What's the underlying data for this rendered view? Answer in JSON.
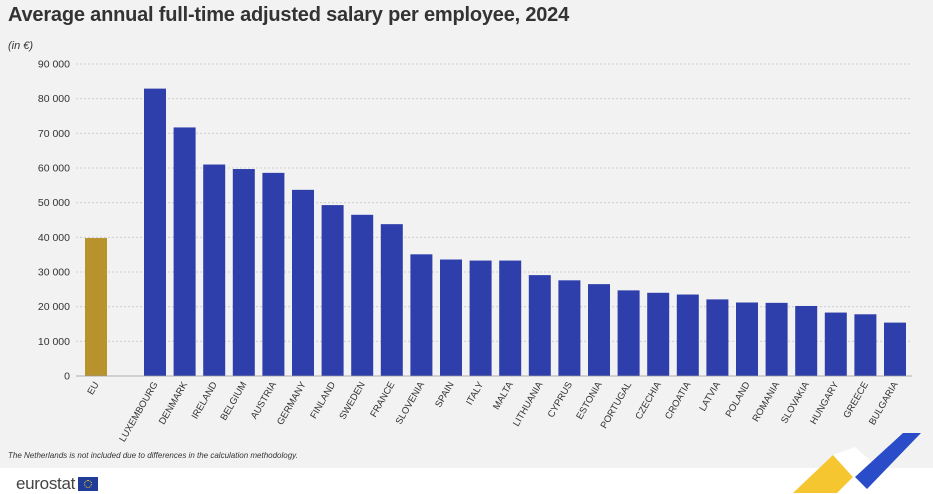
{
  "header": {
    "title": "Average annual full-time adjusted salary per employee, 2024",
    "unit": "(in €)"
  },
  "footnote": "The Netherlands is not included due to differences in the calculation methodology.",
  "brand": {
    "name": "eurostat"
  },
  "colors": {
    "eu_bar": "#b8922c",
    "country_bar": "#2e3eaa",
    "grid": "#c8c8c8",
    "background": "#f2f2f2"
  },
  "chart_data": {
    "type": "bar",
    "title": "Average annual full-time adjusted salary per employee, 2024",
    "xlabel": "",
    "ylabel": "(in €)",
    "ylim": [
      0,
      90000
    ],
    "yticks": [
      0,
      10000,
      20000,
      30000,
      40000,
      50000,
      60000,
      70000,
      80000,
      90000
    ],
    "ytick_labels": [
      "0",
      "10 000",
      "20 000",
      "30 000",
      "40 000",
      "50 000",
      "60 000",
      "70 000",
      "80 000",
      "90 000"
    ],
    "grid": true,
    "legend": "none",
    "categories": [
      "EU",
      "Luxembourg",
      "Denmark",
      "Ireland",
      "Belgium",
      "Austria",
      "Germany",
      "Finland",
      "Sweden",
      "France",
      "Slovenia",
      "Spain",
      "Italy",
      "Malta",
      "Lithuania",
      "Cyprus",
      "Estonia",
      "Portugal",
      "Czechia",
      "Croatia",
      "Latvia",
      "Poland",
      "Romania",
      "Slovakia",
      "Hungary",
      "Greece",
      "Bulgaria"
    ],
    "values": [
      39800,
      82900,
      71700,
      61000,
      59700,
      58600,
      53700,
      49300,
      46500,
      43800,
      35100,
      33600,
      33300,
      33300,
      29100,
      27600,
      26500,
      24700,
      24000,
      23500,
      22100,
      21200,
      21100,
      20200,
      18300,
      17800,
      15400
    ],
    "highlight": [
      "EU"
    ]
  }
}
